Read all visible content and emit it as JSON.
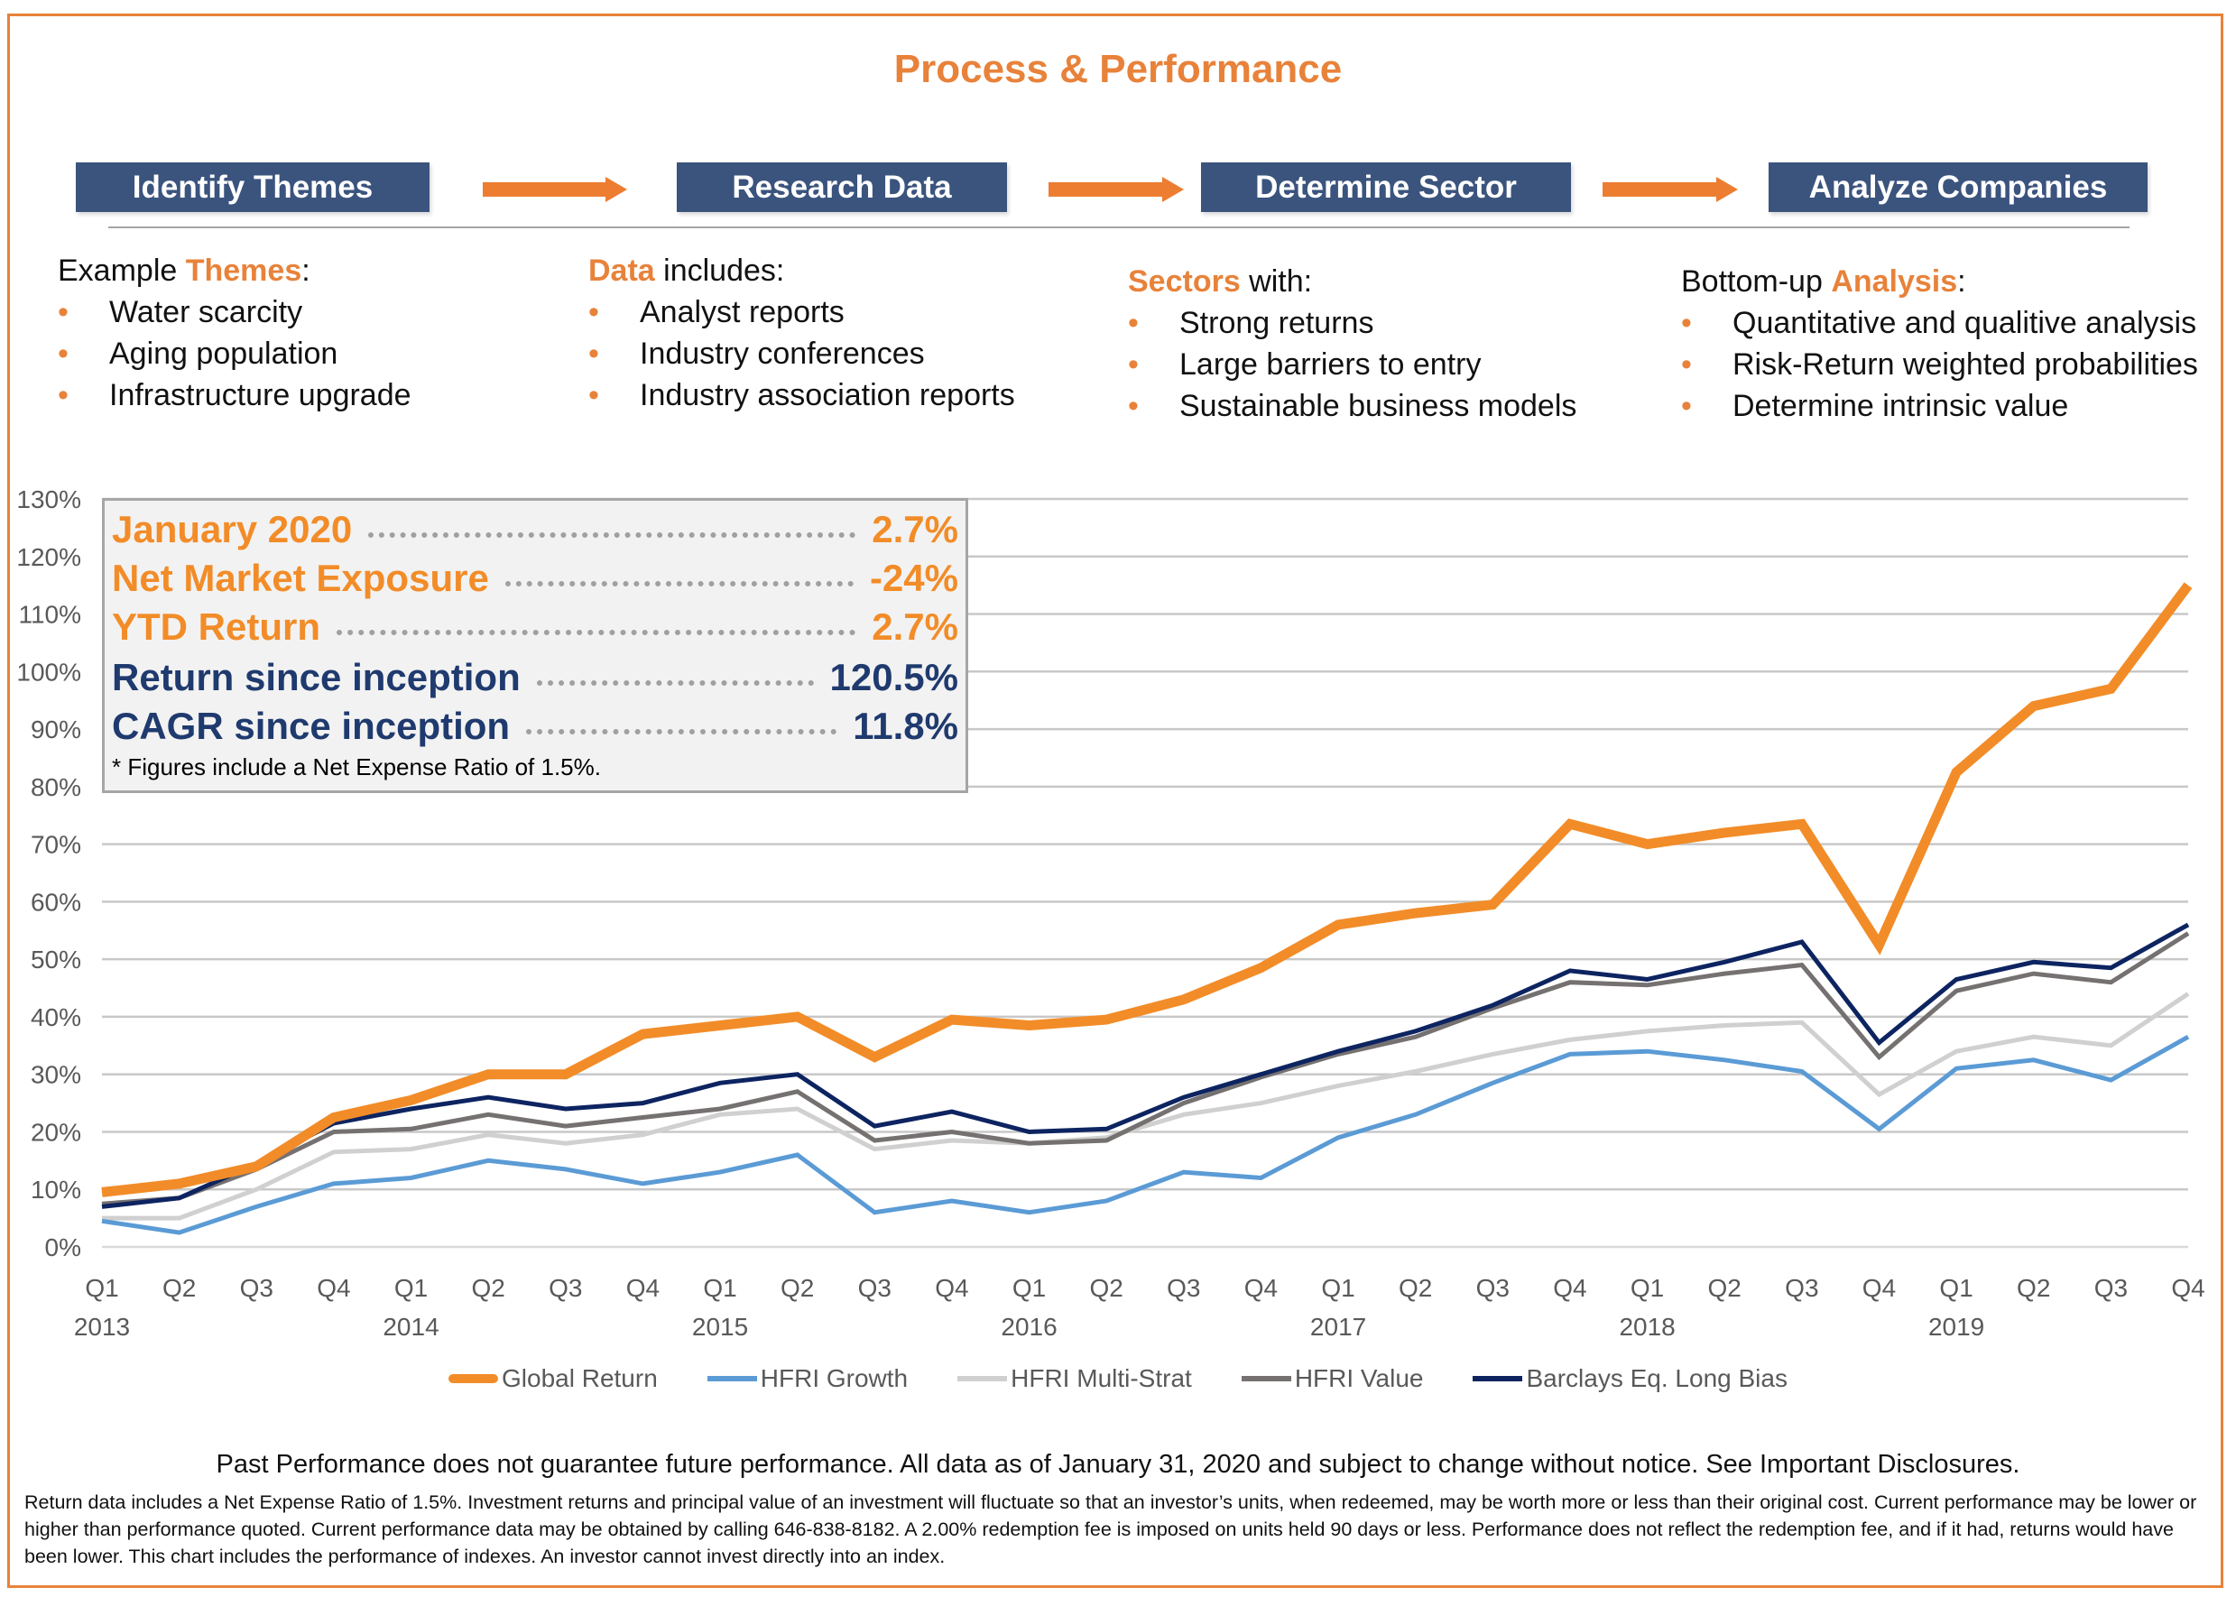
{
  "header": {
    "title": "Process & Performance"
  },
  "process": {
    "steps": [
      "Identify Themes",
      "Research Data",
      "Determine Sector",
      "Analyze Companies"
    ],
    "arrow_icon": "right-arrow-icon"
  },
  "columns": [
    {
      "pre": "Example ",
      "highlight": "Themes",
      "post": ":",
      "items": [
        "Water scarcity",
        "Aging population",
        "Infrastructure upgrade"
      ]
    },
    {
      "pre": "",
      "highlight": "Data",
      "post": " includes:",
      "items": [
        "Analyst reports",
        "Industry conferences",
        "Industry association reports"
      ]
    },
    {
      "pre": "",
      "highlight": "Sectors",
      "post": " with:",
      "items": [
        "Strong returns",
        "Large barriers to entry",
        "Sustainable business models"
      ]
    },
    {
      "pre": "Bottom-up ",
      "highlight": "Analysis",
      "post": ":",
      "items": [
        "Quantitative and qualitive analysis",
        "Risk-Return weighted probabilities",
        "Determine intrinsic value"
      ]
    }
  ],
  "stats": {
    "rows": [
      {
        "label": "January 2020",
        "value": "2.7%",
        "color": "orange"
      },
      {
        "label": "Net Market Exposure",
        "value": "-24%",
        "color": "orange"
      },
      {
        "label": "YTD Return",
        "value": "2.7%",
        "color": "orange"
      },
      {
        "label": "Return since inception",
        "value": "120.5%",
        "color": "navy"
      },
      {
        "label": "CAGR since inception",
        "value": "11.8%",
        "color": "navy"
      }
    ],
    "note": "* Figures include a Net Expense Ratio of 1.5%."
  },
  "colors": {
    "accent_orange": "#E8823A",
    "step_blue": "#3B547E",
    "stat_orange": "#F28C28",
    "stat_navy": "#1F3A6E"
  },
  "chart_data": {
    "type": "line",
    "title": "",
    "xlabel": "",
    "ylabel": "",
    "ylim": [
      0,
      130
    ],
    "y_ticks": [
      "0%",
      "10%",
      "20%",
      "30%",
      "40%",
      "50%",
      "60%",
      "70%",
      "80%",
      "90%",
      "100%",
      "110%",
      "120%",
      "130%"
    ],
    "y_tick_values": [
      0,
      10,
      20,
      30,
      40,
      50,
      60,
      70,
      80,
      90,
      100,
      110,
      120,
      130
    ],
    "grid": true,
    "legend_position": "bottom",
    "categories": [
      "Q1",
      "Q2",
      "Q3",
      "Q4",
      "Q1",
      "Q2",
      "Q3",
      "Q4",
      "Q1",
      "Q2",
      "Q3",
      "Q4",
      "Q1",
      "Q2",
      "Q3",
      "Q4",
      "Q1",
      "Q2",
      "Q3",
      "Q4",
      "Q1",
      "Q2",
      "Q3",
      "Q4",
      "Q1",
      "Q2",
      "Q3",
      "Q4"
    ],
    "year_labels": [
      {
        "index": 0,
        "label": "2013"
      },
      {
        "index": 4,
        "label": "2014"
      },
      {
        "index": 8,
        "label": "2015"
      },
      {
        "index": 12,
        "label": "2016"
      },
      {
        "index": 16,
        "label": "2017"
      },
      {
        "index": 20,
        "label": "2018"
      },
      {
        "index": 24,
        "label": "2019"
      }
    ],
    "series": [
      {
        "name": "Global Return",
        "color": "#F28C28",
        "width": "thick",
        "values": [
          9.5,
          11,
          14,
          22.5,
          25.5,
          30,
          30,
          37,
          38.5,
          40,
          33,
          39.5,
          38.5,
          39.5,
          43,
          48.5,
          56,
          58,
          59.5,
          73.5,
          70,
          72,
          73.5,
          52.5,
          82.5,
          94,
          97,
          115
        ]
      },
      {
        "name": "HFRI Growth",
        "color": "#5B9BD5",
        "width": "normal",
        "values": [
          4.5,
          2.5,
          7,
          11,
          12,
          15,
          13.5,
          11,
          13,
          16,
          6,
          8,
          6,
          8,
          13,
          12,
          19,
          23,
          28.5,
          33.5,
          34,
          32.5,
          30.5,
          20.5,
          31,
          32.5,
          29,
          36.5
        ]
      },
      {
        "name": "HFRI Multi-Strat",
        "color": "#D0D0D0",
        "width": "normal",
        "values": [
          5,
          5,
          10,
          16.5,
          17,
          19.5,
          18,
          19.5,
          23,
          24,
          17,
          18.5,
          18,
          19,
          23,
          25,
          28,
          30.5,
          33.5,
          36,
          37.5,
          38.5,
          39,
          26.5,
          34,
          36.5,
          35,
          44
        ]
      },
      {
        "name": "HFRI Value",
        "color": "#767171",
        "width": "normal",
        "values": [
          7.5,
          8.5,
          13.5,
          20,
          20.5,
          23,
          21,
          22.5,
          24,
          27,
          18.5,
          20,
          18,
          18.5,
          25,
          29.5,
          33.5,
          36.5,
          41.5,
          46,
          45.5,
          47.5,
          49,
          33,
          44.5,
          47.5,
          46,
          54.5
        ]
      },
      {
        "name": "Barclays Eq. Long Bias",
        "color": "#0D2461",
        "width": "normal",
        "values": [
          7,
          8.5,
          14.5,
          21.5,
          24,
          26,
          24,
          25,
          28.5,
          30,
          21,
          23.5,
          20,
          20.5,
          26,
          30,
          34,
          37.5,
          42,
          48,
          46.5,
          49.5,
          53,
          35.5,
          46.5,
          49.5,
          48.5,
          56
        ]
      }
    ]
  },
  "footer": {
    "past_performance": "Past Performance does not guarantee future performance. All data as of January 31, 2020 and subject to change without notice. See Important Disclosures.",
    "disclosure": "Return data includes a Net Expense Ratio of 1.5%. Investment returns and principal value of an investment will fluctuate so that an investor’s units, when redeemed, may be worth more or less than their original cost. Current performance may be lower or higher than performance quoted. Current performance data may be obtained by calling 646-838-8182. A 2.00% redemption fee is imposed on units held 90 days or less. Performance does not reflect the redemption fee, and if it had, returns would have been lower. This chart includes the performance of indexes. An investor cannot invest directly into an index."
  }
}
